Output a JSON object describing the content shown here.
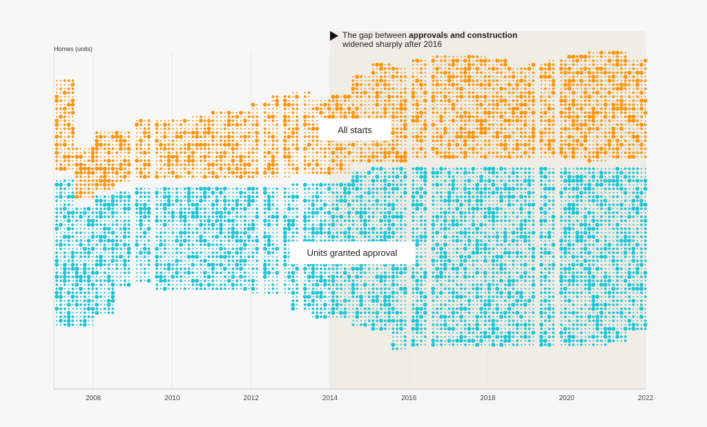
{
  "chart_data": {
    "type": "area",
    "subtype": "stacked-step-dot-texture",
    "title": "",
    "ylabel": "Homes (units)",
    "xlabel": "",
    "x_range": [
      2007,
      2022
    ],
    "x_ticks": [
      "2008",
      "2010",
      "2012",
      "2014",
      "2016",
      "2018",
      "2020",
      "2022"
    ],
    "y_ticks": [],
    "y_scale_note": "no numeric y-axis shown; values are relative units estimated from band heights",
    "grid": "vertical at each tick",
    "highlight_region": {
      "from": 2014,
      "to": 2022,
      "color": "#efede5"
    },
    "annotation": {
      "prefix": "The gap between ",
      "bold": "approvals and construction",
      "line2": "widened sharply after 2016"
    },
    "step": 0.25,
    "x": [
      2007.0,
      2007.25,
      2007.5,
      2007.75,
      2008.0,
      2008.25,
      2008.5,
      2008.75,
      2009.0,
      2009.25,
      2009.5,
      2009.75,
      2010.0,
      2010.25,
      2010.5,
      2010.75,
      2011.0,
      2011.25,
      2011.5,
      2011.75,
      2012.0,
      2012.25,
      2012.5,
      2012.75,
      2013.0,
      2013.25,
      2013.5,
      2013.75,
      2014.0,
      2014.25,
      2014.5,
      2014.75,
      2015.0,
      2015.25,
      2015.5,
      2015.75,
      2016.0,
      2016.25,
      2016.5,
      2016.75,
      2017.0,
      2017.25,
      2017.5,
      2017.75,
      2018.0,
      2018.25,
      2018.5,
      2018.75,
      2019.0,
      2019.25,
      2019.5,
      2019.75,
      2020.0,
      2020.25,
      2020.5,
      2020.75,
      2021.0,
      2021.25,
      2021.5,
      2021.75
    ],
    "series": [
      {
        "name": "Units granted approval",
        "label": "Units granted approval",
        "color": "#1cc5d6",
        "offset": [
          0,
          0,
          -10,
          -10,
          -6,
          -6,
          -4,
          -4,
          -3,
          -3,
          -3,
          -3,
          -3,
          -3,
          -3,
          -3,
          -3,
          -3,
          -3,
          -3,
          -2,
          -2,
          -2,
          -2,
          -1,
          -1,
          -1,
          -1,
          -1,
          -1,
          3,
          3,
          4,
          4,
          4,
          4,
          5,
          5,
          5,
          5,
          5,
          5,
          5,
          5,
          5,
          5,
          5,
          5,
          5,
          5,
          5,
          5,
          5,
          5,
          4,
          4,
          5,
          5,
          5,
          5
        ],
        "values": [
          54,
          54,
          44,
          44,
          44,
          44,
          36,
          36,
          36,
          36,
          38,
          38,
          39,
          39,
          38,
          38,
          38,
          38,
          38,
          38,
          41,
          41,
          41,
          41,
          47,
          47,
          50,
          50,
          50,
          50,
          57,
          57,
          60,
          60,
          67,
          67,
          67,
          67,
          67,
          67,
          67,
          67,
          67,
          67,
          67,
          67,
          66,
          66,
          66,
          66,
          66,
          66,
          67,
          67,
          66,
          66,
          65,
          65,
          61,
          61
        ]
      },
      {
        "name": "All starts",
        "label": "All starts",
        "color": "#ff9308",
        "values": [
          34,
          34,
          20,
          20,
          21,
          21,
          20,
          20,
          22,
          22,
          23,
          23,
          23,
          23,
          24,
          24,
          25,
          25,
          25,
          25,
          27,
          27,
          30,
          30,
          31,
          31,
          28,
          28,
          30,
          30,
          33,
          33,
          36,
          36,
          35,
          35,
          37,
          37,
          38,
          38,
          38,
          38,
          38,
          38,
          37,
          37,
          34,
          34,
          35,
          35,
          36,
          36,
          38,
          38,
          40,
          40,
          40,
          40,
          36,
          36
        ]
      }
    ]
  },
  "labels": {
    "ylabel": "Homes (units)",
    "starts_box": "All starts",
    "approval_box": "Units granted approval"
  }
}
